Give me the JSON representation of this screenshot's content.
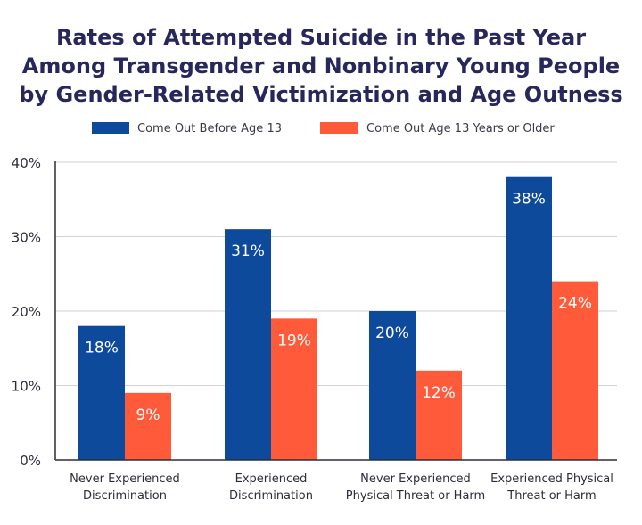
{
  "chart_data": {
    "type": "bar",
    "title_lines": [
      "Rates of Attempted Suicide in the Past Year",
      "Among Transgender and Nonbinary Young People",
      "by Gender-Related Victimization and Age Outness"
    ],
    "categories": [
      [
        "Never Experienced",
        "Discrimination"
      ],
      [
        "Experienced",
        "Discrimination"
      ],
      [
        "Never Experienced",
        "Physical Threat or Harm"
      ],
      [
        "Experienced Physical",
        "Threat or Harm"
      ]
    ],
    "series": [
      {
        "name": "Come Out Before Age 13",
        "color": "#0e4a9c",
        "values": [
          18,
          31,
          20,
          38
        ]
      },
      {
        "name": "Come Out Age 13 Years or Older",
        "color": "#ff5b3a",
        "values": [
          9,
          19,
          12,
          24
        ]
      }
    ],
    "value_suffix": "%",
    "ylim": [
      0,
      40
    ],
    "yticks": [
      0,
      10,
      20,
      30,
      40
    ],
    "xlabel": "",
    "ylabel": "",
    "grid": true,
    "legend_position": "top-center"
  }
}
